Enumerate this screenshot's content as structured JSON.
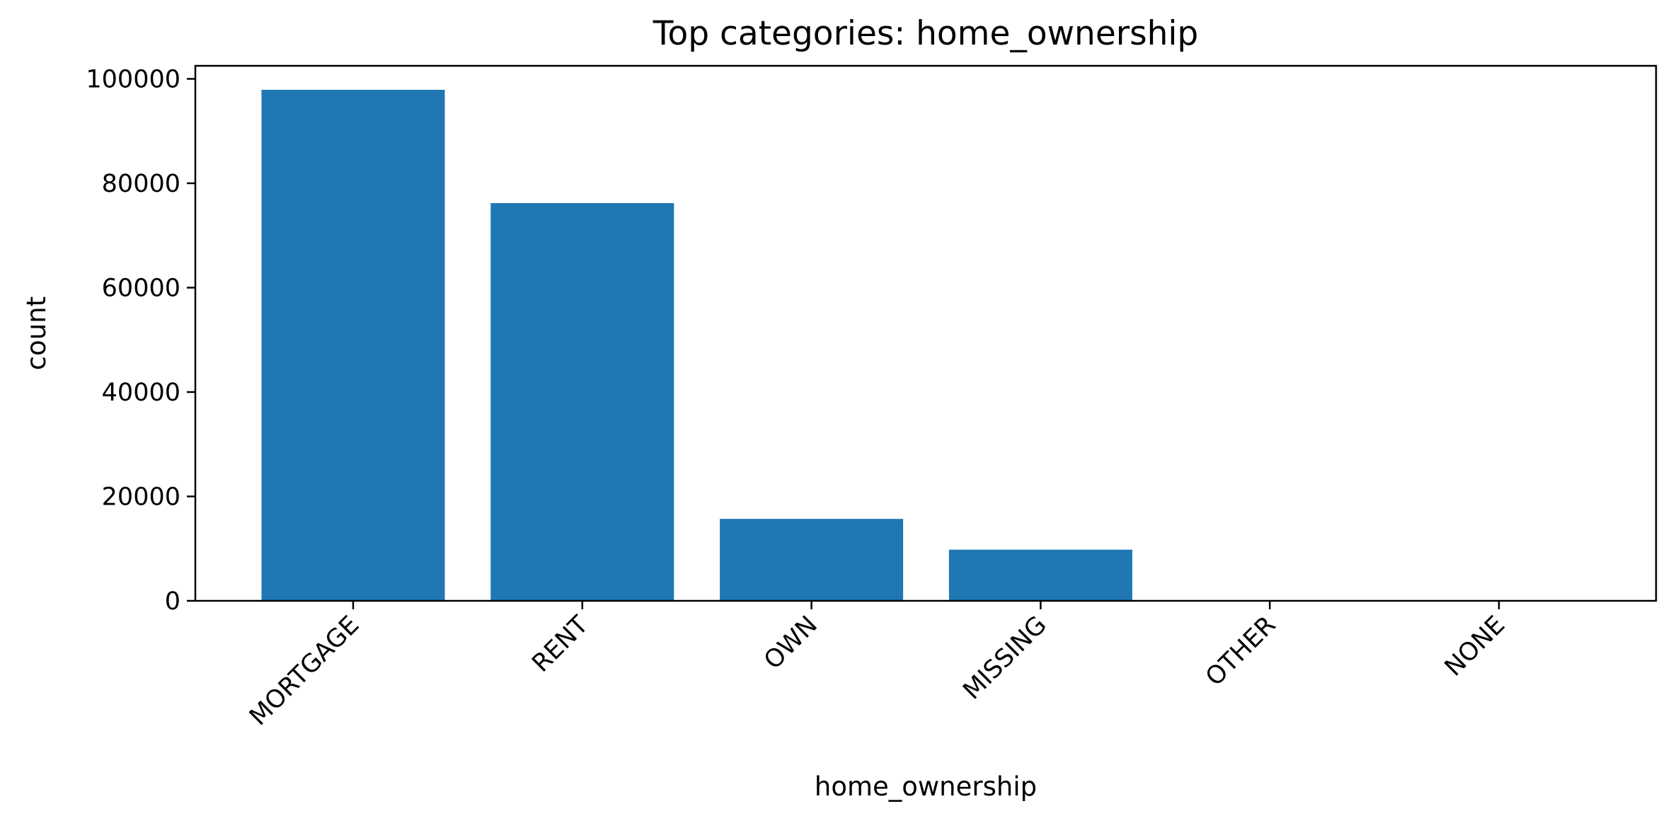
{
  "chart_data": {
    "type": "bar",
    "title": "Top categories: home_ownership",
    "xlabel": "home_ownership",
    "ylabel": "count",
    "categories": [
      "MORTGAGE",
      "RENT",
      "OWN",
      "MISSING",
      "OTHER",
      "NONE"
    ],
    "values": [
      97900,
      76200,
      15700,
      9800,
      50,
      10
    ],
    "ylim": [
      0,
      102500
    ],
    "yticks": [
      0,
      20000,
      40000,
      60000,
      80000,
      100000
    ],
    "ytick_labels": [
      "0",
      "20000",
      "40000",
      "60000",
      "80000",
      "100000"
    ],
    "bar_color": "#1f77b4",
    "grid": false,
    "legend": "none"
  }
}
